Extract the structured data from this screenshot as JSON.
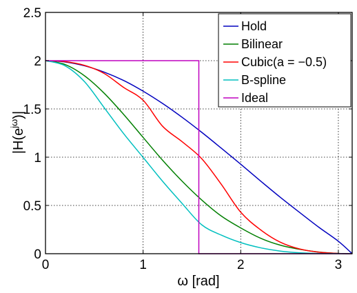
{
  "chart_data": {
    "type": "line",
    "title": "",
    "xlabel": "ω [rad]",
    "ylabel_main": "|H(e",
    "ylabel_sup": "jω",
    "ylabel_end": ")|",
    "xlim": [
      0,
      3.1416
    ],
    "ylim": [
      0,
      2.5
    ],
    "xticks": [
      0,
      1,
      2,
      3
    ],
    "yticks": [
      0,
      0.5,
      1,
      1.5,
      2,
      2.5
    ],
    "xtick_labels": [
      "0",
      "1",
      "2",
      "3"
    ],
    "ytick_labels": [
      "0",
      "0.5",
      "1",
      "1.5",
      "2",
      "2.5"
    ],
    "grid": true,
    "legend_position": "top-right",
    "x": [
      0,
      0.2,
      0.4,
      0.6,
      0.8,
      1.0,
      1.2,
      1.4,
      1.6,
      1.8,
      2.0,
      2.2,
      2.4,
      2.6,
      2.8,
      3.0,
      3.1416
    ],
    "series": [
      {
        "name": "Hold",
        "color": "#0000bf",
        "values": [
          2.0,
          1.987,
          1.947,
          1.882,
          1.795,
          1.684,
          1.556,
          1.413,
          1.258,
          1.094,
          0.927,
          0.756,
          0.589,
          0.43,
          0.274,
          0.129,
          0.0
        ]
      },
      {
        "name": "Bilinear",
        "color": "#007f00",
        "values": [
          2.0,
          1.96,
          1.843,
          1.664,
          1.444,
          1.205,
          0.968,
          0.751,
          0.557,
          0.391,
          0.267,
          0.162,
          0.09,
          0.046,
          0.017,
          0.003,
          0.0
        ]
      },
      {
        "name": "Cubic(a = −0.5)",
        "color": "#ff0000",
        "values": [
          2.0,
          1.99,
          1.951,
          1.868,
          1.723,
          1.59,
          1.32,
          1.16,
          0.985,
          0.72,
          0.43,
          0.25,
          0.122,
          0.05,
          0.016,
          0.003,
          0.0
        ]
      },
      {
        "name": "B-spline",
        "color": "#00bfbf",
        "values": [
          2.0,
          1.947,
          1.782,
          1.515,
          1.245,
          0.998,
          0.75,
          0.52,
          0.3,
          0.193,
          0.115,
          0.062,
          0.028,
          0.01,
          0.003,
          0.001,
          0.0
        ]
      },
      {
        "name": "Ideal",
        "color": "#bf00bf",
        "values": [
          2.0,
          2.0,
          2.0,
          2.0,
          2.0,
          2.0,
          2.0,
          2.0,
          0.0,
          0.0,
          0.0,
          0.0,
          0.0,
          0.0,
          0.0,
          0.0,
          0.0
        ]
      }
    ]
  }
}
